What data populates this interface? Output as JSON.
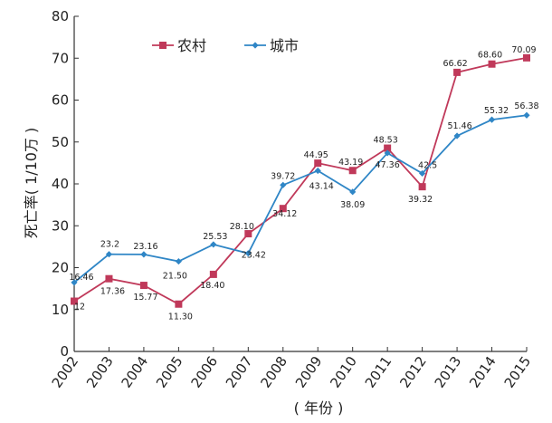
{
  "chart_data": {
    "type": "line",
    "categories": [
      "2002",
      "2003",
      "2004",
      "2005",
      "2006",
      "2007",
      "2008",
      "2009",
      "2010",
      "2011",
      "2012",
      "2013",
      "2014",
      "2015"
    ],
    "series": [
      {
        "name": "农村",
        "color": "#c0395a",
        "marker": "square",
        "values": [
          12,
          17.36,
          15.77,
          11.3,
          18.4,
          28.1,
          34.12,
          44.95,
          43.19,
          48.53,
          39.32,
          66.62,
          68.6,
          70.09
        ],
        "labels": [
          "12",
          "17.36",
          "15.77",
          "11.30",
          "18.40",
          "28.10",
          "34.12",
          "44.95",
          "43.19",
          "48.53",
          "39.32",
          "66.62",
          "68.60",
          "70.09"
        ]
      },
      {
        "name": "城市",
        "color": "#2f86c6",
        "marker": "diamond",
        "values": [
          16.46,
          23.2,
          23.16,
          21.5,
          25.53,
          23.42,
          39.72,
          43.14,
          38.09,
          47.36,
          42.5,
          51.46,
          55.32,
          56.38
        ],
        "labels": [
          "16.46",
          "23.2",
          "23.16",
          "21.50",
          "25.53",
          "23.42",
          "39.72",
          "43.14",
          "38.09",
          "47.36",
          "42.5",
          "51.46",
          "55.32",
          "56.38"
        ]
      }
    ],
    "xlabel": "( 年份 )",
    "ylabel": "死亡率( 1/10万 )",
    "ylim": [
      0,
      80
    ],
    "yticks": [
      0,
      10,
      20,
      30,
      40,
      50,
      60,
      70,
      80
    ],
    "grid": false,
    "legend_position": "top-left"
  }
}
